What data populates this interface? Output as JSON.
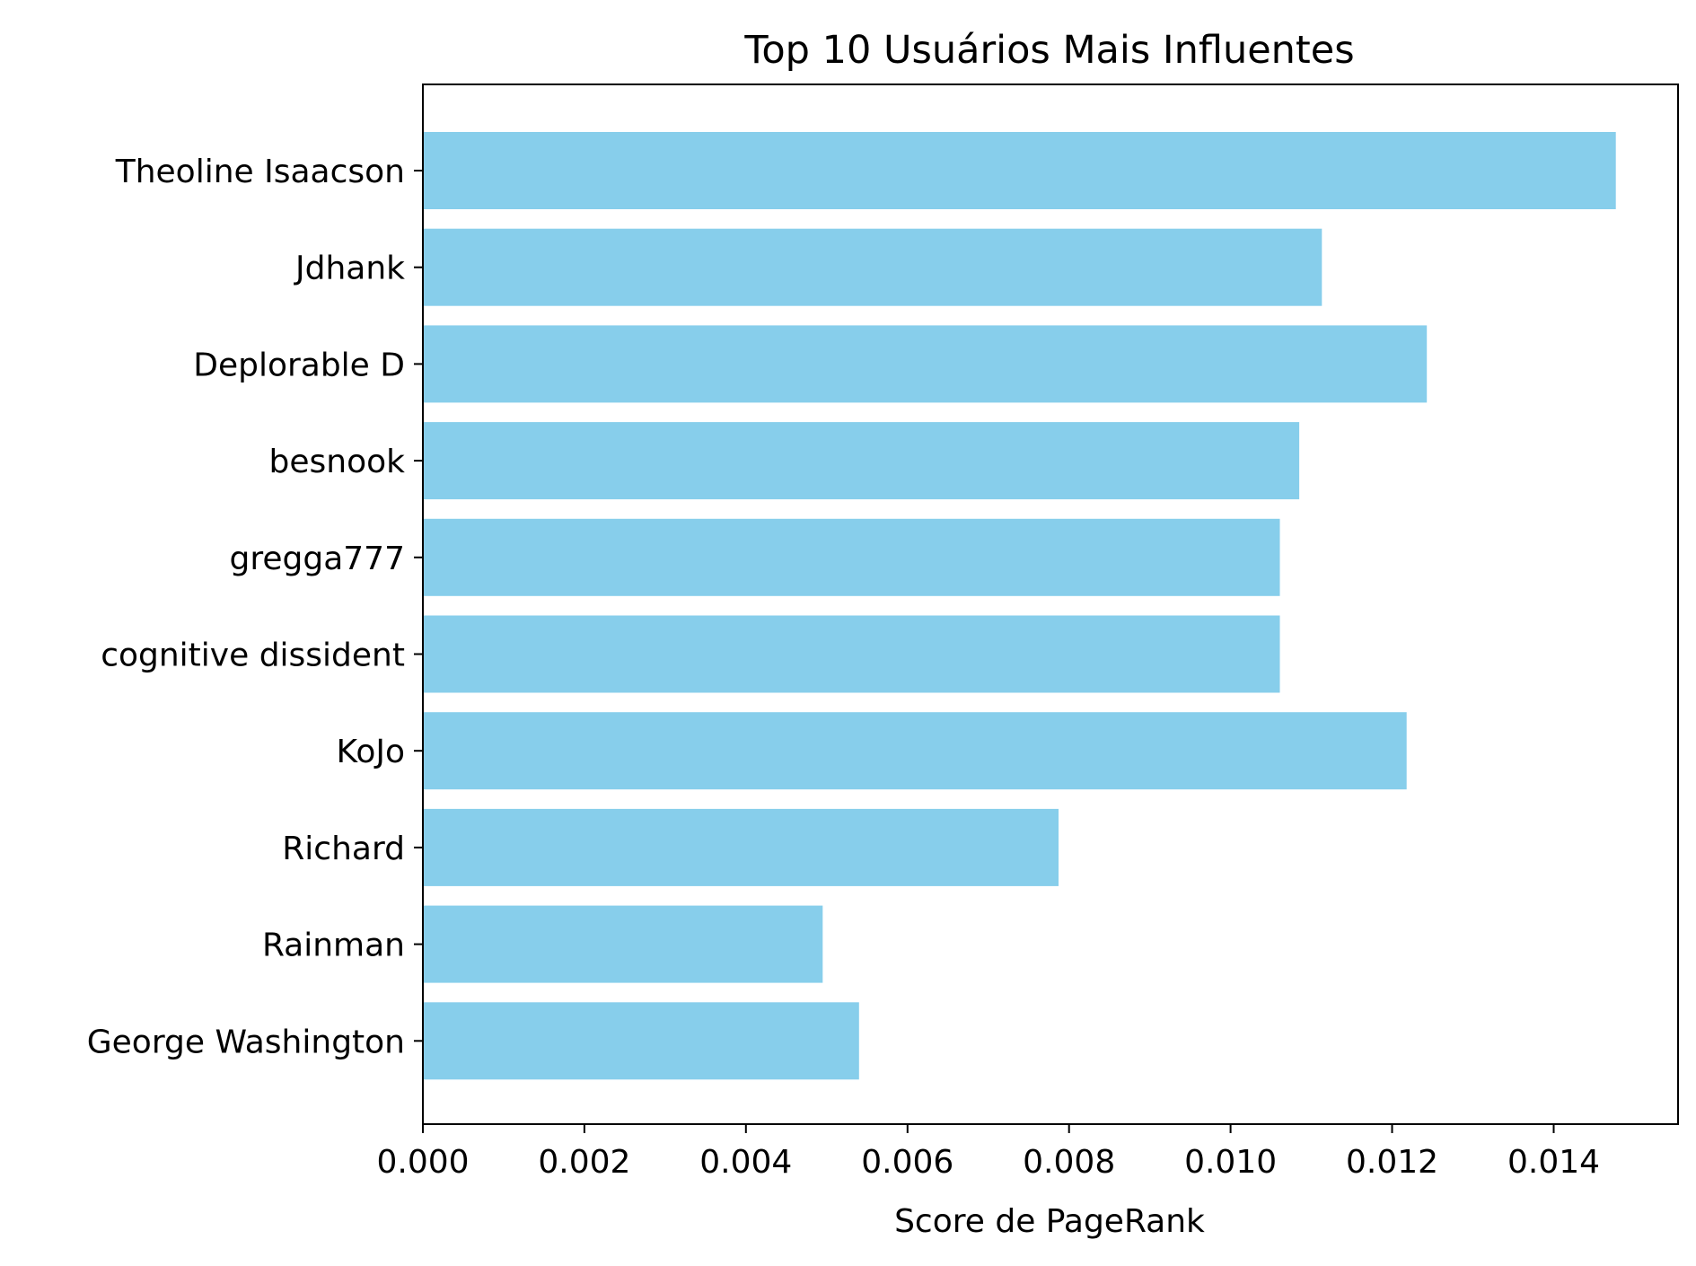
{
  "chart_data": {
    "type": "bar",
    "orientation": "horizontal",
    "title": "Top 10 Usuários Mais Influentes",
    "xlabel": "Score de PageRank",
    "ylabel": "",
    "categories": [
      "Theoline Isaacson",
      "Jdhank",
      "Deplorable D",
      "besnook",
      "gregga777",
      "cognitive dissident",
      "KoJo",
      "Richard",
      "Rainman",
      "George Washington"
    ],
    "values": [
      0.01477,
      0.01113,
      0.01243,
      0.01085,
      0.01061,
      0.01061,
      0.01218,
      0.00787,
      0.00495,
      0.0054
    ],
    "xlim": [
      0,
      0.01554
    ],
    "xticks": [
      0.0,
      0.002,
      0.004,
      0.006,
      0.008,
      0.01,
      0.012,
      0.014
    ],
    "xtick_labels": [
      "0.000",
      "0.002",
      "0.004",
      "0.006",
      "0.008",
      "0.010",
      "0.012",
      "0.014"
    ],
    "grid": false,
    "colors": {
      "bar": "#87ceeb",
      "axes": "#000000",
      "background": "#ffffff"
    }
  }
}
